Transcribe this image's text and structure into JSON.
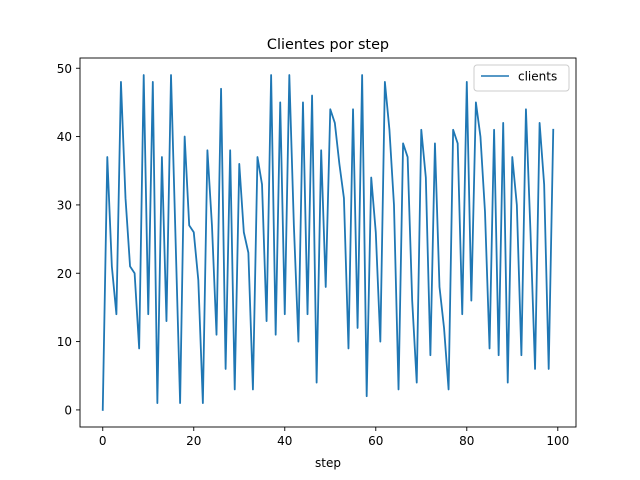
{
  "chart_data": {
    "type": "line",
    "title": "Clientes por step",
    "xlabel": "step",
    "ylabel": "",
    "xlim": [
      -5,
      104
    ],
    "ylim": [
      -2.5,
      51.5
    ],
    "xticks": [
      0,
      20,
      40,
      60,
      80,
      100
    ],
    "yticks": [
      0,
      10,
      20,
      30,
      40,
      50
    ],
    "grid": false,
    "legend_position": "upper right",
    "series": [
      {
        "name": "clients",
        "color": "#1f77b4",
        "x": [
          0,
          1,
          2,
          3,
          4,
          5,
          6,
          7,
          8,
          9,
          10,
          11,
          12,
          13,
          14,
          15,
          16,
          17,
          18,
          19,
          20,
          21,
          22,
          23,
          24,
          25,
          26,
          27,
          28,
          29,
          30,
          31,
          32,
          33,
          34,
          35,
          36,
          37,
          38,
          39,
          40,
          41,
          42,
          43,
          44,
          45,
          46,
          47,
          48,
          49,
          50,
          51,
          52,
          53,
          54,
          55,
          56,
          57,
          58,
          59,
          60,
          61,
          62,
          63,
          64,
          65,
          66,
          67,
          68,
          69,
          70,
          71,
          72,
          73,
          74,
          75,
          76,
          77,
          78,
          79,
          80,
          81,
          82,
          83,
          84,
          85,
          86,
          87,
          88,
          89,
          90,
          91,
          92,
          93,
          94,
          95,
          96,
          97,
          98,
          99
        ],
        "y": [
          0,
          37,
          21,
          14,
          48,
          31,
          21,
          20,
          9,
          49,
          14,
          48,
          1,
          37,
          13,
          49,
          25,
          1,
          40,
          27,
          26,
          19,
          1,
          38,
          27,
          11,
          47,
          6,
          38,
          3,
          36,
          26,
          23,
          3,
          37,
          33,
          13,
          49,
          11,
          45,
          14,
          49,
          27,
          10,
          45,
          14,
          46,
          4,
          38,
          18,
          44,
          42,
          36,
          31,
          9,
          44,
          12,
          49,
          2,
          34,
          26,
          10,
          48,
          41,
          30,
          3,
          39,
          37,
          16,
          4,
          41,
          34,
          8,
          39,
          18,
          12,
          3,
          41,
          39,
          14,
          48,
          16,
          45,
          40,
          29,
          9,
          41,
          8,
          42,
          4,
          37,
          30,
          8,
          44,
          26,
          6,
          42,
          33,
          6,
          41
        ]
      }
    ]
  }
}
